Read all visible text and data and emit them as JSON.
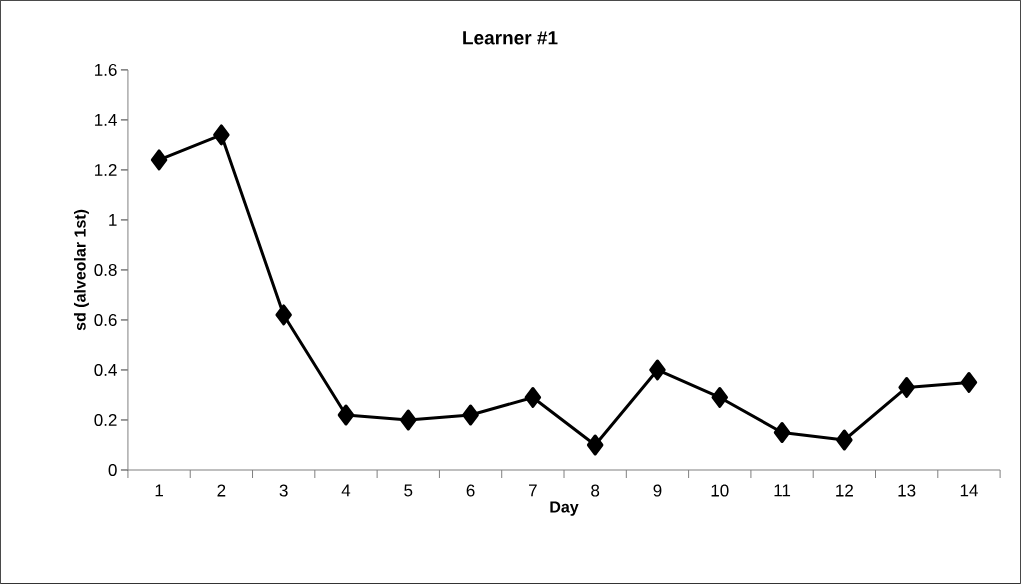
{
  "chart_data": {
    "type": "line",
    "title": "Learner #1",
    "xlabel": "Day",
    "ylabel": "sd (alveolar 1st)",
    "categories": [
      "1",
      "2",
      "3",
      "4",
      "5",
      "6",
      "7",
      "8",
      "9",
      "10",
      "11",
      "12",
      "13",
      "14"
    ],
    "series": [
      {
        "color": "#000000",
        "values": [
          1.24,
          1.34,
          0.62,
          0.22,
          0.2,
          0.22,
          0.29,
          0.1,
          0.4,
          0.29,
          0.15,
          0.12,
          0.33,
          0.35
        ]
      }
    ],
    "ylim": [
      0,
      1.6
    ],
    "yticks": [
      0,
      0.2,
      0.4,
      0.6,
      0.8,
      1,
      1.2,
      1.4,
      1.6
    ],
    "marker": "diamond",
    "line_style": "solid",
    "grid": false
  }
}
